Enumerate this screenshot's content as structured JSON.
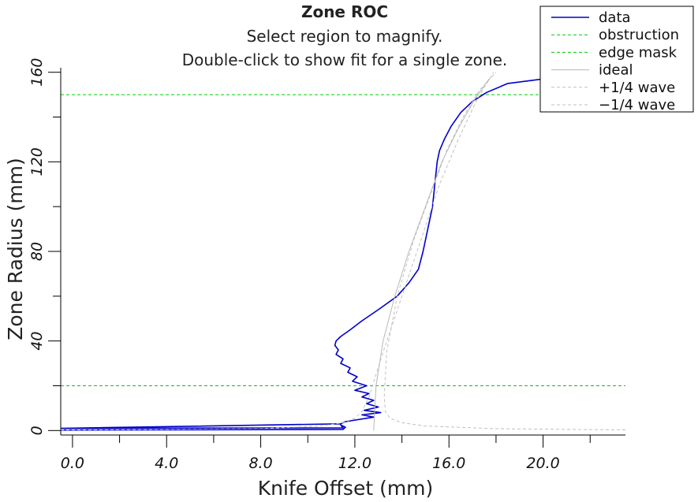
{
  "chart_data": {
    "type": "line",
    "title": "Zone ROC",
    "subtitle_lines": [
      "Select region to magnify.",
      "Double-click to show fit for a single zone."
    ],
    "xlabel": "Knife Offset (mm)",
    "ylabel": "Zone Radius (mm)",
    "xlim": [
      -0.5,
      23.5
    ],
    "ylim": [
      -2,
      162
    ],
    "x_major_ticks": [
      0,
      4,
      8,
      12,
      16,
      20
    ],
    "x_tick_labels": [
      "0.0",
      "4.0",
      "8.0",
      "12.0",
      "16.0",
      "20.0"
    ],
    "x_minor_ticks": [
      2,
      6,
      10,
      14,
      18,
      22
    ],
    "y_major_ticks": [
      0,
      40,
      80,
      120,
      160
    ],
    "y_tick_labels": [
      "0",
      "40",
      "80",
      "120",
      "160"
    ],
    "y_minor_ticks": [
      20,
      60,
      100,
      140
    ],
    "grid": false,
    "legend_position": "top-right",
    "legend": [
      {
        "label": "data",
        "color": "#0000cc",
        "style": "solid"
      },
      {
        "label": "obstruction",
        "color": "#00cc00",
        "style": "dashed"
      },
      {
        "label": "edge mask",
        "color": "#00cc00",
        "style": "dashed"
      },
      {
        "label": "ideal",
        "color": "#b8b8b8",
        "style": "solid"
      },
      {
        "label": "+1/4 wave",
        "color": "#c0c0c0",
        "style": "dashed"
      },
      {
        "label": "−1/4 wave",
        "color": "#c0c0c0",
        "style": "dashed"
      }
    ],
    "obstruction_y": 20,
    "edge_mask_y": 150,
    "series": [
      {
        "key": "data",
        "color": "#0000cc",
        "style": "solid",
        "x": [
          -0.5,
          11.5,
          11.6,
          11.4,
          11.5,
          -0.5,
          11.4,
          11.6,
          12.8,
          12.3,
          13.1,
          12.4,
          13.0,
          12.5,
          12.8,
          12.3,
          12.6,
          12.0,
          12.5,
          11.9,
          12.1,
          11.7,
          11.8,
          11.4,
          11.5,
          11.2,
          11.3,
          11.15,
          11.2,
          11.4,
          11.8,
          12.3,
          13.0,
          13.8,
          14.3,
          14.7,
          14.9,
          15.1,
          15.3,
          15.4,
          15.5,
          15.6,
          15.8,
          16.1,
          16.5,
          17.0,
          17.6,
          18.5,
          20.0,
          21.5,
          22.5,
          23.3
        ],
        "y": [
          0.2,
          0.5,
          1.5,
          2.5,
          1.2,
          1.0,
          3.0,
          4.0,
          6.0,
          7.0,
          8.0,
          9.0,
          10.5,
          12.0,
          13.5,
          15.0,
          16.5,
          18.0,
          20.0,
          22.0,
          24.0,
          26.0,
          28.0,
          30.0,
          32.0,
          34.0,
          36.0,
          38.0,
          40.0,
          42.0,
          45.0,
          49.0,
          54.0,
          60.0,
          66.0,
          72.0,
          80.0,
          90.0,
          100.0,
          110.0,
          120.0,
          125.0,
          130.0,
          136.0,
          142.0,
          147.0,
          151.0,
          155.0,
          157.0,
          157.5,
          158.0,
          160.0
        ]
      },
      {
        "key": "ideal",
        "color": "#b8b8b8",
        "style": "solid",
        "x": [
          12.8,
          12.9,
          13.2,
          13.7,
          14.3,
          15.0,
          15.7,
          16.4,
          17.1,
          17.7
        ],
        "y": [
          0.0,
          20.0,
          40.0,
          60.0,
          80.0,
          100.0,
          120.0,
          135.0,
          148.0,
          157.0
        ]
      },
      {
        "key": "plus_quarter_wave",
        "color": "#c0c0c0",
        "style": "dashed",
        "x": [
          -0.5,
          8.0,
          10.5,
          11.5,
          12.0,
          12.3,
          12.6,
          13.2,
          14.0,
          14.8,
          15.6,
          16.4,
          17.2,
          17.9
        ],
        "y": [
          0.3,
          0.8,
          2.0,
          3.5,
          5.5,
          8.5,
          15.0,
          35.0,
          60.0,
          85.0,
          110.0,
          130.0,
          148.0,
          160.0
        ]
      },
      {
        "key": "minus_quarter_wave",
        "color": "#c0c0c0",
        "style": "dashed",
        "x": [
          23.5,
          18.0,
          15.0,
          14.0,
          13.5,
          13.3,
          13.25,
          13.35,
          13.8,
          14.5,
          15.2,
          15.9,
          16.6,
          17.3,
          18.0
        ],
        "y": [
          0.3,
          0.8,
          2.0,
          3.5,
          5.5,
          8.5,
          15.0,
          35.0,
          60.0,
          85.0,
          105.0,
          125.0,
          140.0,
          152.0,
          160.0
        ]
      }
    ]
  }
}
